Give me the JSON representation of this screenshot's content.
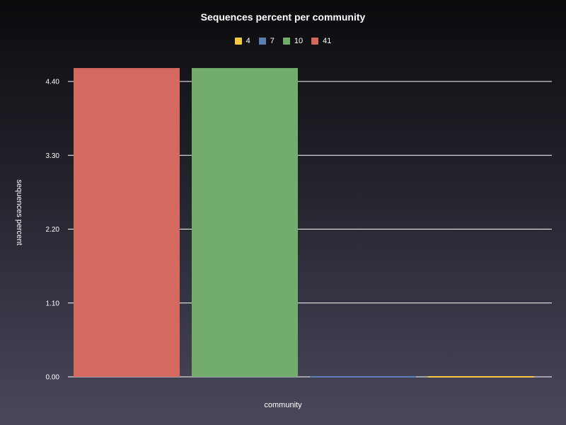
{
  "chart_data": {
    "type": "bar",
    "title": "Sequences percent per community",
    "xlabel": "community",
    "ylabel": "sequences percent",
    "ylim": [
      0,
      4.6
    ],
    "y_ticks": [
      "0.00",
      "1.10",
      "2.20",
      "3.30",
      "4.40"
    ],
    "grid": "horizontal",
    "legend_position": "top",
    "series": [
      {
        "name": "41",
        "value": 4.6,
        "color": "#d46a5f"
      },
      {
        "name": "10",
        "value": 4.6,
        "color": "#72ad6e"
      },
      {
        "name": "7",
        "value": 0.01,
        "color": "#5b7fb4"
      },
      {
        "name": "4",
        "value": 0.01,
        "color": "#f5c842"
      }
    ],
    "legend": [
      {
        "name": "4",
        "color": "#f5c842"
      },
      {
        "name": "7",
        "color": "#5b7fb4"
      },
      {
        "name": "10",
        "color": "#72ad6e"
      },
      {
        "name": "41",
        "color": "#d46a5f"
      }
    ]
  }
}
